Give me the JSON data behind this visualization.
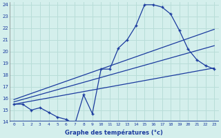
{
  "bg_color": "#d4efec",
  "grid_color": "#b8ddd8",
  "line_color": "#1a3a9e",
  "xlabel": "Graphe des températures (°c)",
  "xlim": [
    -0.5,
    23.5
  ],
  "ylim": [
    14,
    24.2
  ],
  "yticks": [
    14,
    15,
    16,
    17,
    18,
    19,
    20,
    21,
    22,
    23,
    24
  ],
  "xticks": [
    0,
    1,
    2,
    3,
    4,
    5,
    6,
    7,
    8,
    9,
    10,
    11,
    12,
    13,
    14,
    15,
    16,
    17,
    18,
    19,
    20,
    21,
    22,
    23
  ],
  "actual": {
    "x": [
      0,
      1,
      2,
      3,
      4,
      5,
      6,
      7,
      8,
      9,
      10,
      11,
      12,
      13,
      14,
      15,
      16,
      17,
      18,
      19,
      20,
      21,
      22,
      23
    ],
    "y": [
      15.5,
      15.5,
      15.0,
      15.2,
      14.8,
      14.4,
      14.2,
      13.8,
      16.3,
      14.7,
      18.5,
      18.5,
      20.3,
      21.0,
      22.2,
      24.0,
      24.0,
      23.8,
      23.2,
      21.8,
      20.2,
      19.3,
      18.8,
      18.5
    ]
  },
  "trend_lines": [
    {
      "x": [
        0,
        23
      ],
      "y": [
        15.5,
        18.6
      ]
    },
    {
      "x": [
        0,
        23
      ],
      "y": [
        15.7,
        20.5
      ]
    },
    {
      "x": [
        0,
        23
      ],
      "y": [
        15.9,
        21.9
      ]
    }
  ],
  "separator_color": "#3050a0",
  "label_color": "#1a3a9e",
  "tick_color": "#1a3a9e"
}
